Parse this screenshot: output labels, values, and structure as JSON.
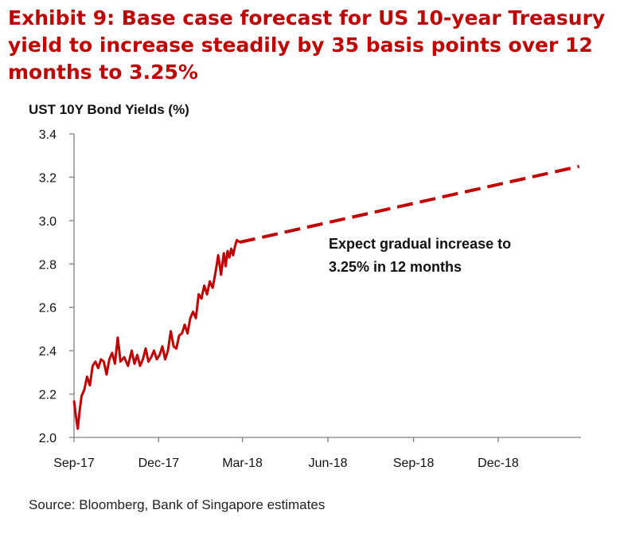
{
  "title": "Exhibit 9: Base case forecast for US 10-year Treasury yield to increase steadily by 35 basis points over 12 months to 3.25%",
  "source": "Source: Bloomberg, Bank of Singapore estimates",
  "colors": {
    "title": "#C00000",
    "series": "#C00000",
    "axis": "#7F7F7F"
  },
  "chart_data": {
    "type": "line",
    "ylabel": "UST 10Y Bond Yields (%)",
    "xlabel": "",
    "ylim": [
      2.0,
      3.4
    ],
    "yticks": [
      2.0,
      2.2,
      2.4,
      2.6,
      2.8,
      3.0,
      3.2,
      3.4
    ],
    "yticklabels": [
      "2.0",
      "2.2",
      "2.4",
      "2.6",
      "2.8",
      "3.0",
      "3.2",
      "3.4"
    ],
    "xlim": [
      "2017-09-01",
      "2019-02-28"
    ],
    "xticks": [
      "2017-09-01",
      "2017-12-01",
      "2018-03-01",
      "2018-06-01",
      "2018-09-01",
      "2018-12-01"
    ],
    "xticklabels": [
      "Sep-17",
      "Dec-17",
      "Mar-18",
      "Jun-18",
      "Sep-18",
      "Dec-18"
    ],
    "grid": false,
    "legend": "none",
    "annotation": "Expect gradual increase to 3.25% in 12 months",
    "series": [
      {
        "style": "solid",
        "x": [
          "2017-09-01",
          "2017-09-03",
          "2017-09-05",
          "2017-09-07",
          "2017-09-09",
          "2017-09-12",
          "2017-09-15",
          "2017-09-18",
          "2017-09-21",
          "2017-09-24",
          "2017-09-27",
          "2017-09-30",
          "2017-10-03",
          "2017-10-06",
          "2017-10-09",
          "2017-10-12",
          "2017-10-15",
          "2017-10-18",
          "2017-10-21",
          "2017-10-25",
          "2017-10-29",
          "2017-11-02",
          "2017-11-05",
          "2017-11-08",
          "2017-11-11",
          "2017-11-14",
          "2017-11-17",
          "2017-11-20",
          "2017-11-23",
          "2017-11-26",
          "2017-11-29",
          "2017-12-02",
          "2017-12-05",
          "2017-12-08",
          "2017-12-11",
          "2017-12-14",
          "2017-12-17",
          "2017-12-20",
          "2017-12-23",
          "2017-12-26",
          "2017-12-29",
          "2018-01-01",
          "2018-01-04",
          "2018-01-07",
          "2018-01-10",
          "2018-01-13",
          "2018-01-16",
          "2018-01-19",
          "2018-01-22",
          "2018-01-25",
          "2018-01-28",
          "2018-01-31",
          "2018-02-03",
          "2018-02-06",
          "2018-02-09",
          "2018-02-11",
          "2018-02-13",
          "2018-02-15",
          "2018-02-17",
          "2018-02-19",
          "2018-02-21",
          "2018-02-23",
          "2018-02-26"
        ],
        "values": [
          2.17,
          2.1,
          2.04,
          2.12,
          2.19,
          2.22,
          2.28,
          2.24,
          2.33,
          2.35,
          2.32,
          2.36,
          2.35,
          2.29,
          2.36,
          2.39,
          2.34,
          2.46,
          2.35,
          2.37,
          2.33,
          2.4,
          2.34,
          2.38,
          2.33,
          2.36,
          2.41,
          2.35,
          2.37,
          2.4,
          2.36,
          2.38,
          2.42,
          2.36,
          2.4,
          2.49,
          2.42,
          2.41,
          2.47,
          2.48,
          2.52,
          2.48,
          2.55,
          2.58,
          2.55,
          2.66,
          2.64,
          2.7,
          2.66,
          2.72,
          2.69,
          2.76,
          2.84,
          2.75,
          2.85,
          2.79,
          2.86,
          2.83,
          2.87,
          2.84,
          2.88,
          2.91,
          2.9
        ]
      },
      {
        "style": "dashed",
        "x": [
          "2018-02-26",
          "2019-02-26"
        ],
        "values": [
          2.9,
          3.25
        ]
      }
    ]
  }
}
